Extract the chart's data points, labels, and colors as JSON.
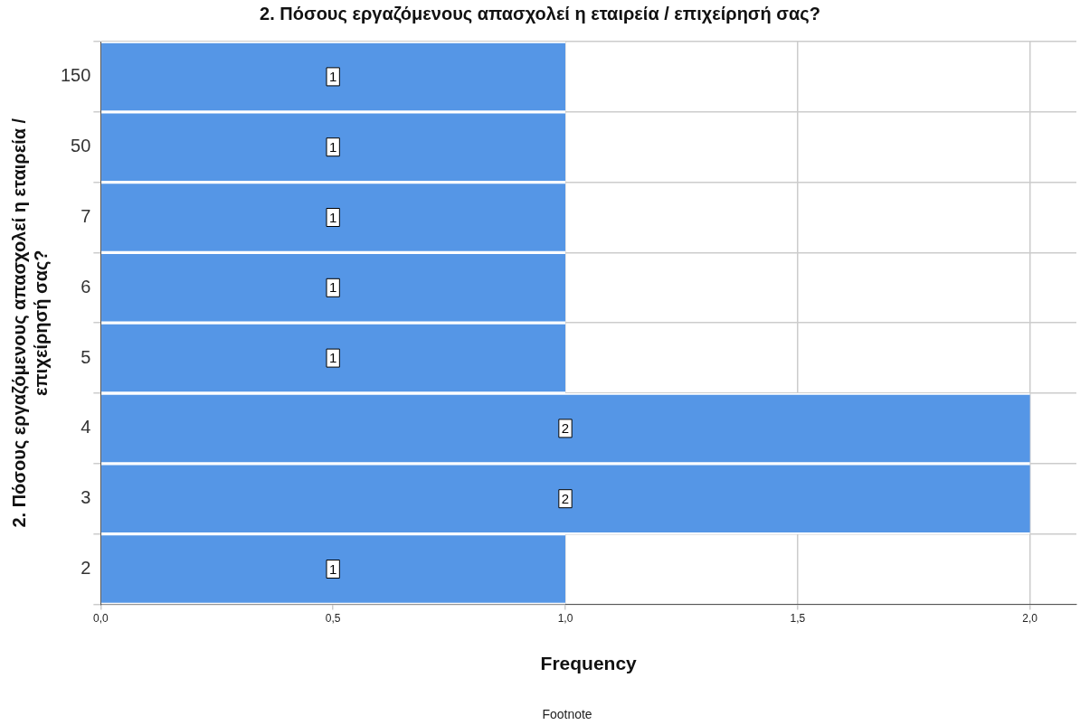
{
  "chart_data": {
    "type": "bar",
    "orientation": "horizontal",
    "title": "2. Πόσους εργαζόμενους απασχολεί η εταιρεία / επιχείρησή σας?",
    "xlabel": "Frequency",
    "ylabel": "2. Πόσους εργαζόμενους απασχολεί η εταιρεία / επιχείρησή σας?",
    "categories": [
      "150",
      "50",
      "7",
      "6",
      "5",
      "4",
      "3",
      "2"
    ],
    "values": [
      1,
      1,
      1,
      1,
      1,
      2,
      2,
      1
    ],
    "color": "#5596e6",
    "xlim": [
      0,
      2.1
    ],
    "xticks": [
      {
        "value": 0,
        "label": "0,0"
      },
      {
        "value": 0.5,
        "label": "0,5"
      },
      {
        "value": 1,
        "label": "1,0"
      },
      {
        "value": 1.5,
        "label": "1,5"
      },
      {
        "value": 2,
        "label": "2,0"
      }
    ],
    "grid": true,
    "legend": false,
    "data_labels": true,
    "annotations": [
      "Footnote"
    ]
  }
}
